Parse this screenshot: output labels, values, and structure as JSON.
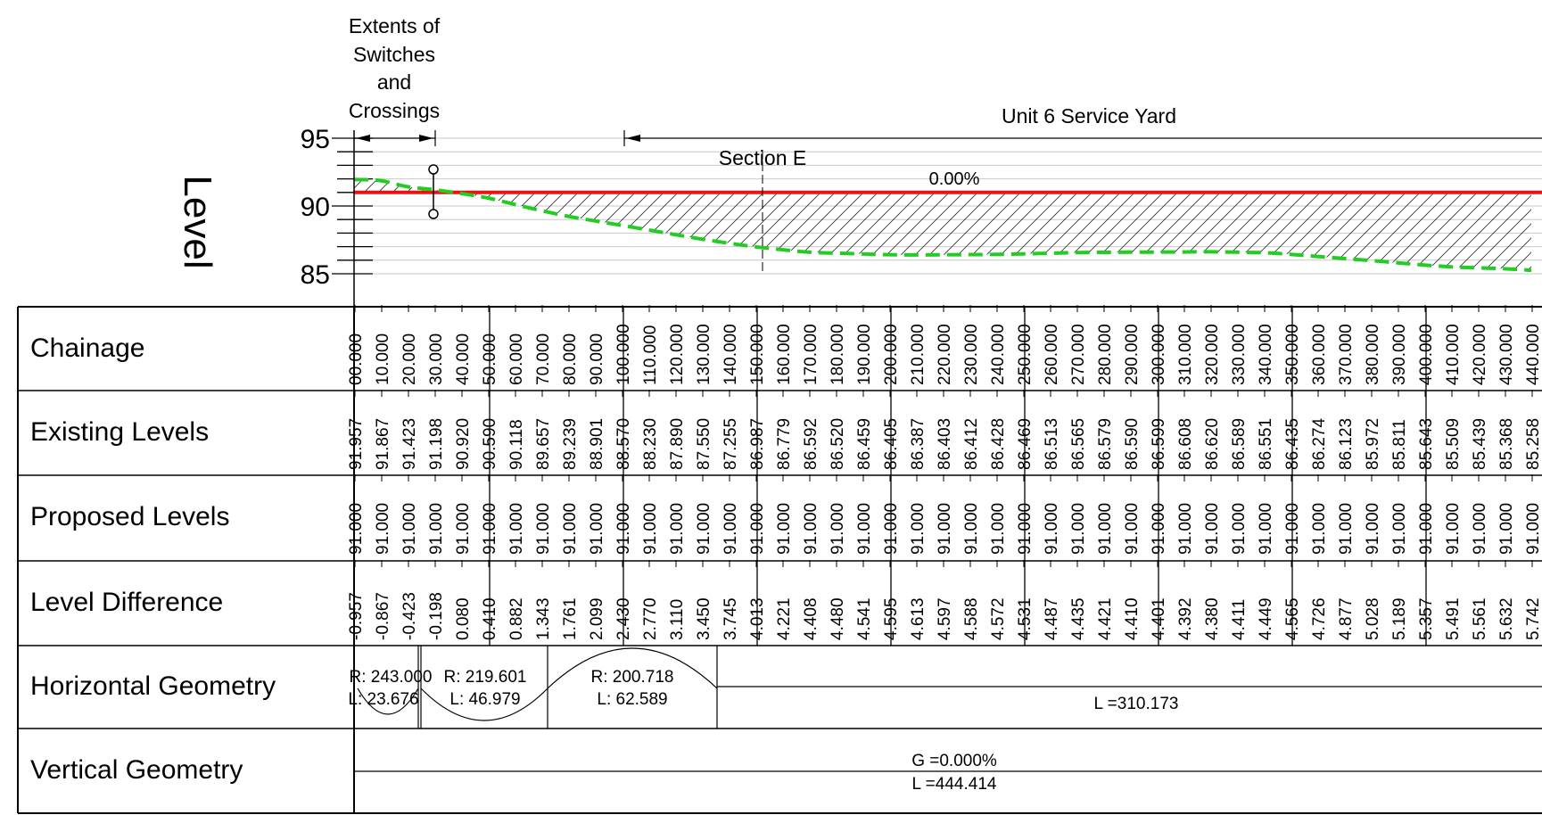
{
  "axis": {
    "title": "Level",
    "ticks": [
      "95",
      "90",
      "85"
    ]
  },
  "annotations": {
    "extents_lines": [
      "Extents of",
      "Switches",
      "and",
      "Crossings"
    ],
    "unit_label": "Unit 6 Service Yard",
    "section_label": "Section E",
    "grade_label": "0.00%"
  },
  "rows": {
    "chainage": "Chainage",
    "existing": "Existing Levels",
    "proposed": "Proposed Levels",
    "difference": "Level Difference",
    "horizontal": "Horizontal Geometry",
    "vertical": "Vertical Geometry"
  },
  "table_values": {
    "chainage": [
      "00.000",
      "10.000",
      "20.000",
      "30.000",
      "40.000",
      "50.000",
      "60.000",
      "70.000",
      "80.000",
      "90.000",
      "100.000",
      "110.000",
      "120.000",
      "130.000",
      "140.000",
      "150.000",
      "160.000",
      "170.000",
      "180.000",
      "190.000",
      "200.000",
      "210.000",
      "220.000",
      "230.000",
      "240.000",
      "250.000",
      "260.000",
      "270.000",
      "280.000",
      "290.000",
      "300.000",
      "310.000",
      "320.000",
      "330.000",
      "340.000",
      "350.000",
      "360.000",
      "370.000",
      "380.000",
      "390.000",
      "400.000",
      "410.000",
      "420.000",
      "430.000",
      "440.000"
    ],
    "existing": [
      "91.957",
      "91.867",
      "91.423",
      "91.198",
      "90.920",
      "90.590",
      "90.118",
      "89.657",
      "89.239",
      "88.901",
      "88.570",
      "88.230",
      "87.890",
      "87.550",
      "87.255",
      "86.987",
      "86.779",
      "86.592",
      "86.520",
      "86.459",
      "86.405",
      "86.387",
      "86.403",
      "86.412",
      "86.428",
      "86.469",
      "86.513",
      "86.565",
      "86.579",
      "86.590",
      "86.599",
      "86.608",
      "86.620",
      "86.589",
      "86.551",
      "86.435",
      "86.274",
      "86.123",
      "85.972",
      "85.811",
      "85.643",
      "85.509",
      "85.439",
      "85.368",
      "85.258"
    ],
    "proposed": [
      "91.000",
      "91.000",
      "91.000",
      "91.000",
      "91.000",
      "91.000",
      "91.000",
      "91.000",
      "91.000",
      "91.000",
      "91.000",
      "91.000",
      "91.000",
      "91.000",
      "91.000",
      "91.000",
      "91.000",
      "91.000",
      "91.000",
      "91.000",
      "91.000",
      "91.000",
      "91.000",
      "91.000",
      "91.000",
      "91.000",
      "91.000",
      "91.000",
      "91.000",
      "91.000",
      "91.000",
      "91.000",
      "91.000",
      "91.000",
      "91.000",
      "91.000",
      "91.000",
      "91.000",
      "91.000",
      "91.000",
      "91.000",
      "91.000",
      "91.000",
      "91.000",
      "91.000"
    ],
    "difference": [
      "-0.957",
      "-0.867",
      "-0.423",
      "-0.198",
      "0.080",
      "0.410",
      "0.882",
      "1.343",
      "1.761",
      "2.099",
      "2.430",
      "2.770",
      "3.110",
      "3.450",
      "3.745",
      "4.013",
      "4.221",
      "4.408",
      "4.480",
      "4.541",
      "4.595",
      "4.613",
      "4.597",
      "4.588",
      "4.572",
      "4.531",
      "4.487",
      "4.435",
      "4.421",
      "4.410",
      "4.401",
      "4.392",
      "4.380",
      "4.411",
      "4.449",
      "4.565",
      "4.726",
      "4.877",
      "5.028",
      "5.189",
      "5.357",
      "5.491",
      "5.561",
      "5.632",
      "5.742"
    ]
  },
  "horizontal_geometry": [
    {
      "r": "R: 243.000",
      "l": "L: 23.676"
    },
    {
      "r": "R: 219.601",
      "l": "L: 46.979"
    },
    {
      "r": "R: 200.718",
      "l": "L: 62.589"
    },
    {
      "r": "",
      "l": "L =310.173"
    }
  ],
  "vertical_geometry": {
    "grade": "G =0.000%",
    "length": "L =444.414"
  },
  "chart_data": {
    "type": "line",
    "ylabel": "Level",
    "ylim": [
      85,
      95
    ],
    "x": [
      0,
      10,
      20,
      30,
      40,
      50,
      60,
      70,
      80,
      90,
      100,
      110,
      120,
      130,
      140,
      150,
      160,
      170,
      180,
      190,
      200,
      210,
      220,
      230,
      240,
      250,
      260,
      270,
      280,
      290,
      300,
      310,
      320,
      330,
      340,
      350,
      360,
      370,
      380,
      390,
      400,
      410,
      420,
      430,
      440
    ],
    "series": [
      {
        "values": [
          91.957,
          91.867,
          91.423,
          91.198,
          90.92,
          90.59,
          90.118,
          89.657,
          89.239,
          88.901,
          88.57,
          88.23,
          87.89,
          87.55,
          87.255,
          86.987,
          86.779,
          86.592,
          86.52,
          86.459,
          86.405,
          86.387,
          86.403,
          86.412,
          86.428,
          86.469,
          86.513,
          86.565,
          86.579,
          86.59,
          86.599,
          86.608,
          86.62,
          86.589,
          86.551,
          86.435,
          86.274,
          86.123,
          85.972,
          85.811,
          85.643,
          85.509,
          85.439,
          85.368,
          85.258
        ]
      },
      {
        "values": [
          91,
          91,
          91,
          91,
          91,
          91,
          91,
          91,
          91,
          91,
          91,
          91,
          91,
          91,
          91,
          91,
          91,
          91,
          91,
          91,
          91,
          91,
          91,
          91,
          91,
          91,
          91,
          91,
          91,
          91,
          91,
          91,
          91,
          91,
          91,
          91,
          91,
          91,
          91,
          91,
          91,
          91,
          91,
          91,
          91
        ]
      }
    ],
    "colors": {
      "existing": "#22cc22",
      "proposed": "#ee1111",
      "grid": "#c8c8c8"
    }
  }
}
